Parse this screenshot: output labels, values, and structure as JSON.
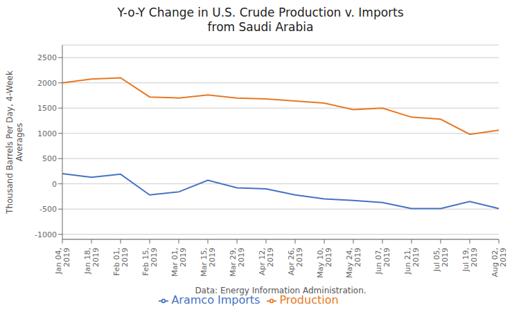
{
  "chart_data": {
    "type": "line",
    "title": "Y-o-Y Change in U.S. Crude Production v. Imports\nfrom Saudi Arabia",
    "x_label": "Data: Energy Information Administration.",
    "y_label": "Thousand Barrels Per Day, 4-Week\nAverages",
    "categories": [
      "Jan 04,\n2019",
      "Jan 18,\n2019",
      "Feb 01,\n2019",
      "Feb 15,\n2019",
      "Mar 01,\n2019",
      "Mar 15,\n2019",
      "Mar 29,\n2019",
      "Apr 12,\n2019",
      "Apr 26,\n2019",
      "May 10,\n2019",
      "May 24,\n2019",
      "Jun 07,\n2019",
      "Jun 21,\n2019",
      "Jul 05,\n2019",
      "Jul 19,\n2019",
      "Aug 02,\n2019"
    ],
    "series": [
      {
        "name": "Production",
        "color": "#E87722",
        "values": [
          2000,
          2075,
          2100,
          1720,
          1700,
          1760,
          1700,
          1680,
          1640,
          1600,
          1470,
          1500,
          1320,
          1280,
          980,
          1060
        ]
      },
      {
        "name": "Aramco Imports",
        "color": "#4472C4",
        "values": [
          200,
          130,
          190,
          -220,
          -160,
          70,
          -80,
          -100,
          -220,
          -300,
          -330,
          -370,
          -490,
          -490,
          -350,
          -490
        ]
      }
    ],
    "ylim": [
      -1100,
      2750
    ],
    "yticks": [
      -1000,
      -500,
      0,
      500,
      1000,
      1500,
      2000,
      2500
    ],
    "grid": true,
    "legend": "bottom"
  }
}
